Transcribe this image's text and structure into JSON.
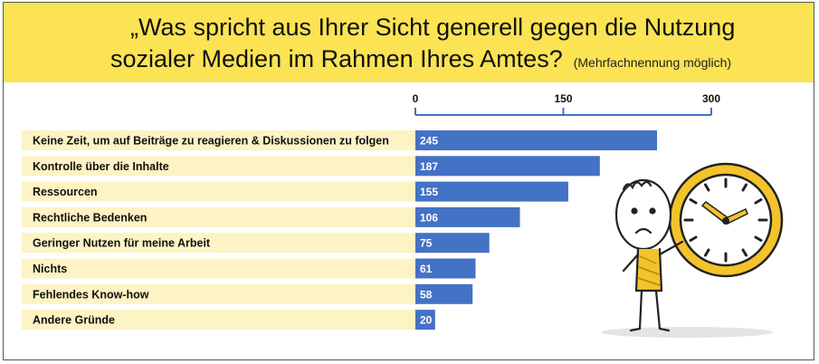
{
  "header": {
    "title_line1": "„Was spricht aus Ihrer Sicht generell gegen die Nutzung",
    "title_line2": "sozialer Medien im Rahmen Ihres Amtes?",
    "subtitle": "(Mehrfachnennung möglich)"
  },
  "colors": {
    "header_bg": "#fbe354",
    "bar": "#4472c4",
    "row_bg": "#fdf3c4",
    "axis": "#4472c4"
  },
  "chart_data": {
    "type": "bar",
    "orientation": "horizontal",
    "categories": [
      "Keine Zeit, um auf Beiträge zu reagieren & Diskussionen zu folgen",
      "Kontrolle über die Inhalte",
      "Ressourcen",
      "Rechtliche Bedenken",
      "Geringer Nutzen für meine Arbeit",
      "Nichts",
      "Fehlendes Know-how",
      "Andere Gründe"
    ],
    "values": [
      245,
      187,
      155,
      106,
      75,
      61,
      58,
      20
    ],
    "xlim": [
      0,
      300
    ],
    "xticks": [
      0,
      150,
      300
    ],
    "axis_position": "top",
    "grid": false,
    "legend": "none"
  },
  "illustration": {
    "name": "stick-figure-with-clock"
  }
}
